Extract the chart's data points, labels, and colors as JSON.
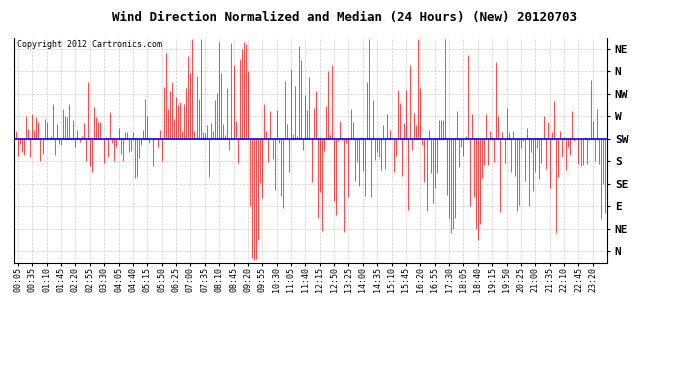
{
  "title": "Wind Direction Normalized and Median (24 Hours) (New) 20120703",
  "copyright_text": "Copyright 2012 Cartronics.com",
  "y_tick_labels": [
    "NE",
    "N",
    "NW",
    "W",
    "SW",
    "S",
    "SE",
    "E",
    "NE",
    "N"
  ],
  "y_tick_values": [
    9,
    8,
    7,
    6,
    5,
    4,
    3,
    2,
    1,
    0
  ],
  "y_range": [
    -0.5,
    9.5
  ],
  "median_value": 5.0,
  "line_color": "#FF0000",
  "median_color": "#0000FF",
  "background_color": "#FFFFFF",
  "grid_color": "#CCCCCC",
  "title_fontsize": 9,
  "copyright_fontsize": 6,
  "tick_fontsize": 6,
  "ytick_fontsize": 8,
  "n_points": 288,
  "seed": 42,
  "x_tick_labels": [
    "00:05",
    "00:35",
    "01:10",
    "01:45",
    "02:20",
    "02:55",
    "03:30",
    "04:05",
    "04:40",
    "05:15",
    "05:50",
    "06:25",
    "07:00",
    "07:35",
    "08:10",
    "08:45",
    "09:20",
    "09:55",
    "10:30",
    "11:05",
    "11:40",
    "12:15",
    "12:50",
    "13:25",
    "14:00",
    "14:35",
    "15:10",
    "15:45",
    "16:20",
    "16:55",
    "17:30",
    "18:05",
    "18:40",
    "19:15",
    "19:50",
    "20:25",
    "21:00",
    "21:35",
    "22:10",
    "22:45",
    "23:20",
    "23:55"
  ]
}
